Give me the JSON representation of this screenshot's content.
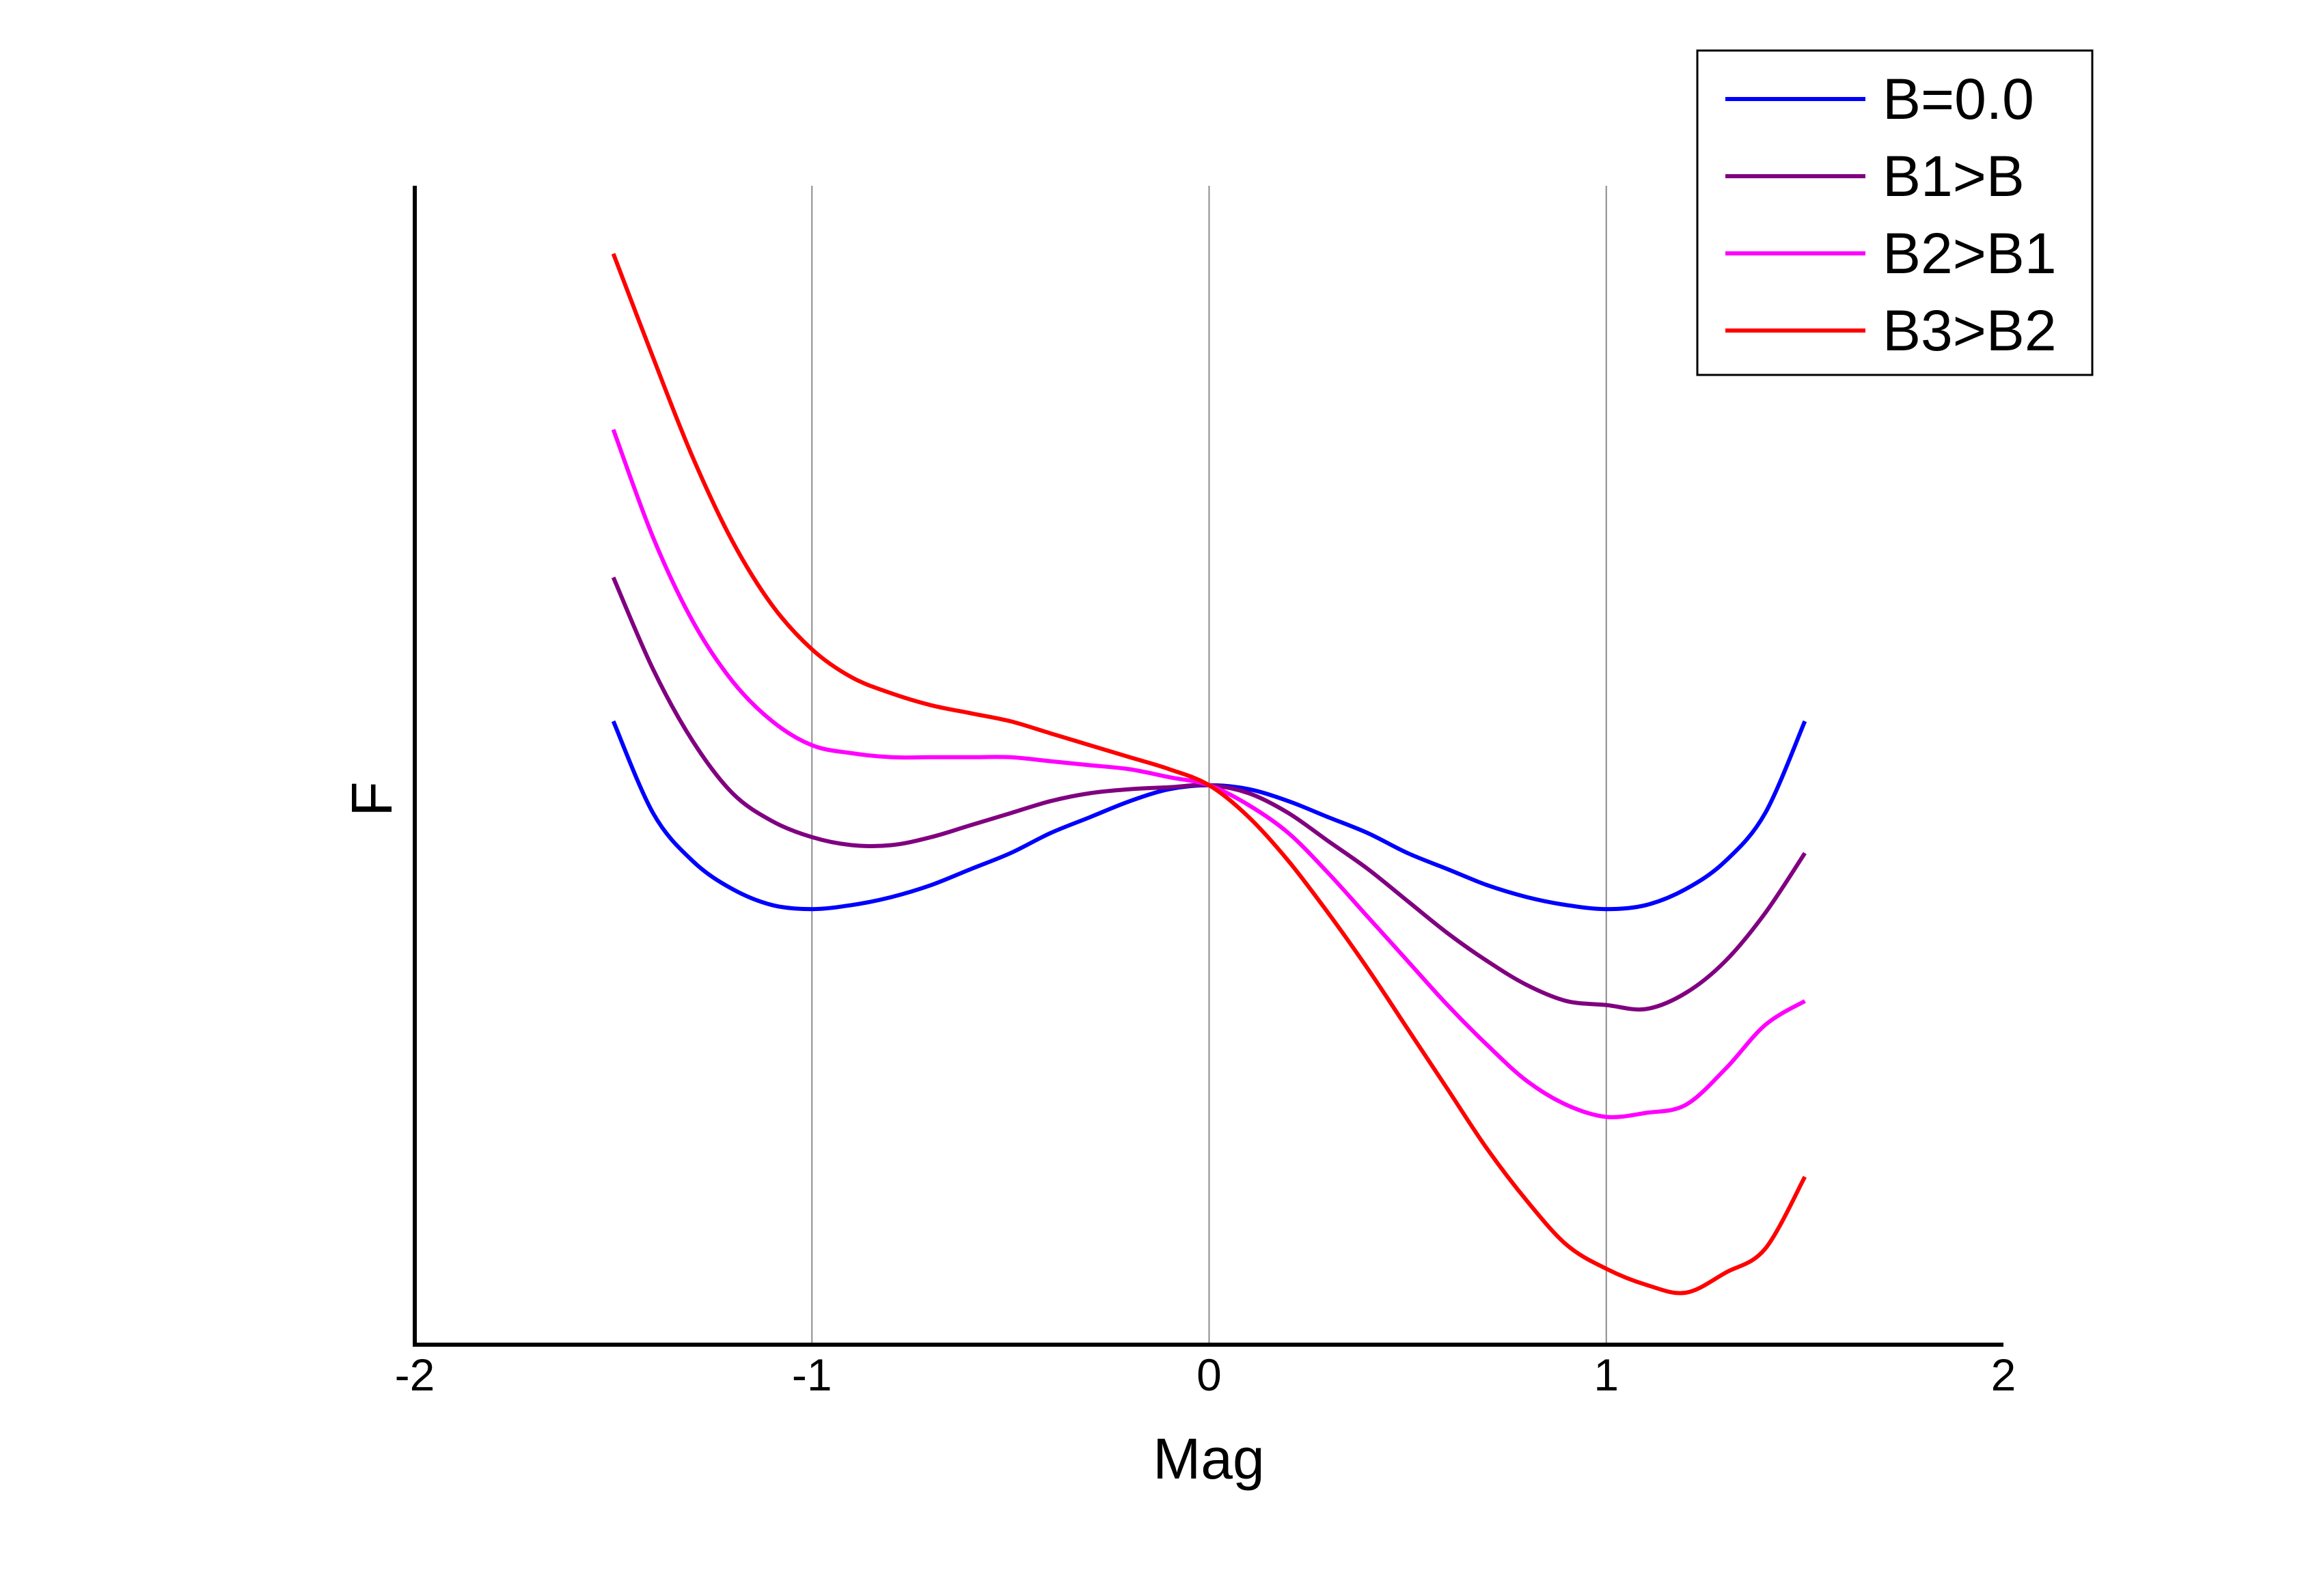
{
  "chart_data": {
    "type": "line",
    "title": "",
    "xlabel": "Mag",
    "ylabel": "F",
    "xlim": [
      -2,
      2
    ],
    "ylim": [
      -1.4,
      1.5
    ],
    "xticks": [
      "-2",
      "-1",
      "0",
      "1",
      "2"
    ],
    "xtick_values": [
      -2,
      -1,
      0,
      1,
      2
    ],
    "grid_x_values": [
      -1,
      0,
      1
    ],
    "legend_position": "top-right",
    "series": [
      {
        "name": "B=0.0",
        "color": "#0000ff",
        "x": [
          -1.5,
          -1.4,
          -1.3,
          -1.2,
          -1.1,
          -1.0,
          -0.9,
          -0.8,
          -0.7,
          -0.6,
          -0.5,
          -0.4,
          -0.3,
          -0.2,
          -0.1,
          0.0,
          0.1,
          0.2,
          0.3,
          0.4,
          0.5,
          0.6,
          0.7,
          0.8,
          0.9,
          1.0,
          1.1,
          1.2,
          1.3,
          1.4,
          1.5
        ],
        "y": [
          0.16,
          -0.07,
          -0.19,
          -0.26,
          -0.3,
          -0.31,
          -0.3,
          -0.28,
          -0.25,
          -0.21,
          -0.17,
          -0.12,
          -0.08,
          -0.04,
          -0.01,
          0.0,
          -0.01,
          -0.04,
          -0.08,
          -0.12,
          -0.17,
          -0.21,
          -0.25,
          -0.28,
          -0.3,
          -0.31,
          -0.3,
          -0.26,
          -0.19,
          -0.07,
          0.16
        ]
      },
      {
        "name": "B1>B",
        "color": "#800080",
        "x": [
          -1.5,
          -1.4,
          -1.3,
          -1.2,
          -1.1,
          -1.0,
          -0.9,
          -0.8,
          -0.7,
          -0.6,
          -0.5,
          -0.4,
          -0.3,
          -0.2,
          -0.1,
          0.0,
          0.1,
          0.2,
          0.3,
          0.4,
          0.5,
          0.6,
          0.7,
          0.8,
          0.9,
          1.0,
          1.1,
          1.2,
          1.3,
          1.4,
          1.5
        ],
        "y": [
          0.52,
          0.29,
          0.11,
          -0.02,
          -0.09,
          -0.13,
          -0.15,
          -0.15,
          -0.13,
          -0.1,
          -0.07,
          -0.04,
          -0.02,
          -0.01,
          -0.005,
          0.0,
          -0.02,
          -0.07,
          -0.14,
          -0.21,
          -0.29,
          -0.37,
          -0.44,
          -0.5,
          -0.54,
          -0.55,
          -0.56,
          -0.52,
          -0.44,
          -0.32,
          -0.17
        ]
      },
      {
        "name": "B2>B1",
        "color": "#ff00ff",
        "x": [
          -1.5,
          -1.4,
          -1.3,
          -1.2,
          -1.1,
          -1.0,
          -0.9,
          -0.8,
          -0.7,
          -0.6,
          -0.5,
          -0.4,
          -0.3,
          -0.2,
          -0.1,
          0.0,
          0.1,
          0.2,
          0.3,
          0.4,
          0.5,
          0.6,
          0.7,
          0.8,
          0.9,
          1.0,
          1.1,
          1.2,
          1.3,
          1.4,
          1.5
        ],
        "y": [
          0.89,
          0.62,
          0.41,
          0.26,
          0.16,
          0.1,
          0.08,
          0.07,
          0.07,
          0.07,
          0.07,
          0.06,
          0.05,
          0.04,
          0.02,
          0.0,
          -0.05,
          -0.12,
          -0.22,
          -0.33,
          -0.44,
          -0.55,
          -0.65,
          -0.74,
          -0.8,
          -0.83,
          -0.82,
          -0.8,
          -0.71,
          -0.6,
          -0.54
        ]
      },
      {
        "name": "B3>B2",
        "color": "#ff0000",
        "x": [
          -1.5,
          -1.4,
          -1.3,
          -1.2,
          -1.1,
          -1.0,
          -0.9,
          -0.8,
          -0.7,
          -0.6,
          -0.5,
          -0.4,
          -0.3,
          -0.2,
          -0.1,
          0.0,
          0.1,
          0.2,
          0.3,
          0.4,
          0.5,
          0.6,
          0.7,
          0.8,
          0.9,
          1.0,
          1.1,
          1.2,
          1.3,
          1.4,
          1.5
        ],
        "y": [
          1.33,
          1.07,
          0.82,
          0.61,
          0.45,
          0.34,
          0.27,
          0.23,
          0.2,
          0.18,
          0.16,
          0.13,
          0.1,
          0.07,
          0.04,
          0.0,
          -0.08,
          -0.19,
          -0.32,
          -0.46,
          -0.61,
          -0.76,
          -0.91,
          -1.04,
          -1.15,
          -1.21,
          -1.25,
          -1.27,
          -1.22,
          -1.16,
          -0.98
        ]
      }
    ]
  }
}
